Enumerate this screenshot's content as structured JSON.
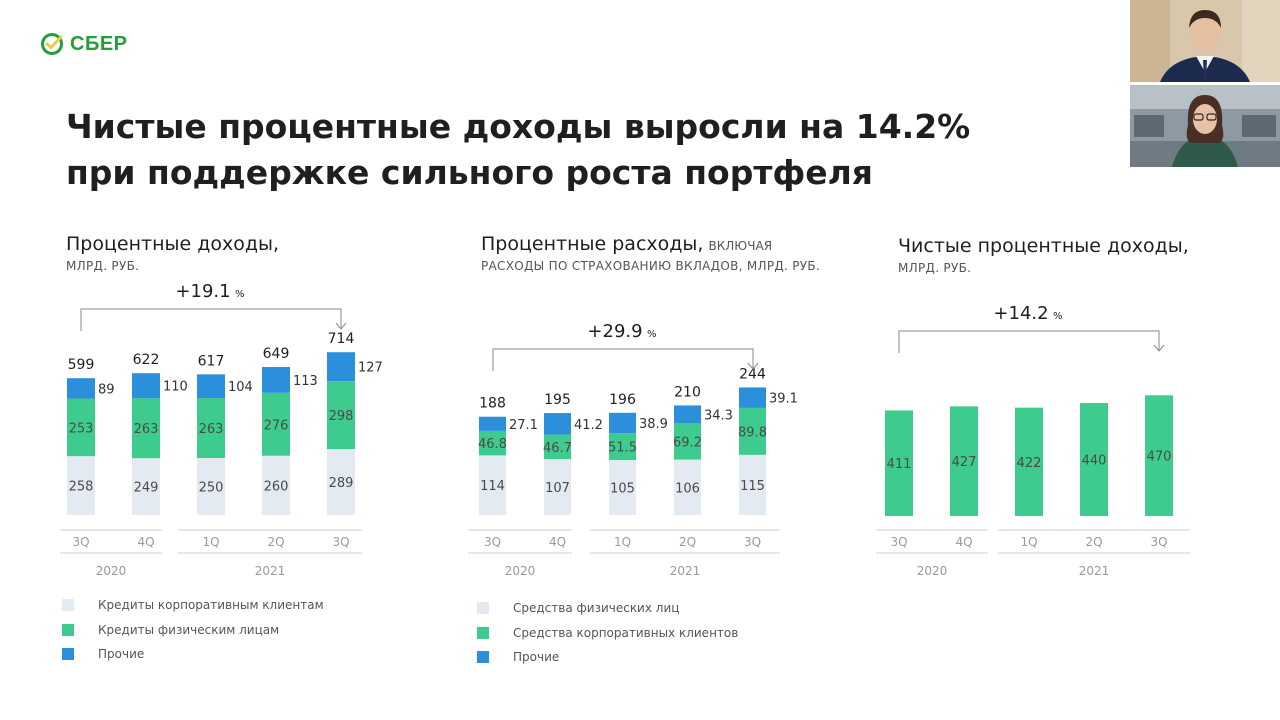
{
  "brand": {
    "logo_text": "СБЕР",
    "logo_color": "#21a038"
  },
  "title": {
    "line1": "Чистые процентные доходы выросли на 14.2%",
    "line2": "при поддержке сильного роста портфеля"
  },
  "colors": {
    "light": "#e3eaf2",
    "green": "#3ecc8e",
    "blue": "#2b8fdb"
  },
  "chart_data": [
    {
      "type": "bar",
      "stacked": true,
      "title": "Процентные доходы,",
      "title_note": "",
      "unit": "МЛРД. РУБ.",
      "categories": [
        "3Q",
        "4Q",
        "1Q",
        "2Q",
        "3Q"
      ],
      "year_groups": [
        {
          "label": "2020",
          "count": 2
        },
        {
          "label": "2021",
          "count": 3
        }
      ],
      "series": [
        {
          "name": "Кредиты корпоративным клиентам",
          "color": "#e3eaf2",
          "values": [
            258,
            249,
            250,
            260,
            289
          ]
        },
        {
          "name": "Кредиты физическим лицам",
          "color": "#3ecc8e",
          "values": [
            253,
            263,
            263,
            276,
            298
          ]
        },
        {
          "name": "Прочие",
          "color": "#2b8fdb",
          "values": [
            89,
            110,
            104,
            113,
            127
          ]
        }
      ],
      "totals": [
        "599",
        "622",
        "617",
        "649",
        "714"
      ],
      "growth_label": "+19.1",
      "growth_unit": "%"
    },
    {
      "type": "bar",
      "stacked": true,
      "title": "Процентные расходы,",
      "title_note": "ВКЛЮЧАЯ",
      "unit": "РАСХОДЫ ПО СТРАХОВАНИЮ ВКЛАДОВ, МЛРД. РУБ.",
      "categories": [
        "3Q",
        "4Q",
        "1Q",
        "2Q",
        "3Q"
      ],
      "year_groups": [
        {
          "label": "2020",
          "count": 2
        },
        {
          "label": "2021",
          "count": 3
        }
      ],
      "series": [
        {
          "name": "Средства физических лиц",
          "color": "#e3eaf2",
          "values": [
            114,
            107,
            105,
            106,
            115
          ]
        },
        {
          "name": "Средства корпоративных клиентов",
          "color": "#3ecc8e",
          "values": [
            46.8,
            46.7,
            51.5,
            69.2,
            89.8
          ]
        },
        {
          "name": "Прочие",
          "color": "#2b8fdb",
          "values": [
            27.1,
            41.2,
            38.9,
            34.3,
            39.1
          ]
        }
      ],
      "totals": [
        "188",
        "195",
        "196",
        "210",
        "244"
      ],
      "growth_label": "+29.9",
      "growth_unit": "%"
    },
    {
      "type": "bar",
      "stacked": false,
      "title": "Чистые процентные доходы,",
      "title_note": "",
      "unit": "МЛРД. РУБ.",
      "categories": [
        "3Q",
        "4Q",
        "1Q",
        "2Q",
        "3Q"
      ],
      "year_groups": [
        {
          "label": "2020",
          "count": 2
        },
        {
          "label": "2021",
          "count": 3
        }
      ],
      "series": [
        {
          "name": "",
          "color": "#3ecc8e",
          "values": [
            411,
            427,
            422,
            440,
            470
          ]
        }
      ],
      "totals": [],
      "growth_label": "+14.2",
      "growth_unit": "%"
    }
  ]
}
